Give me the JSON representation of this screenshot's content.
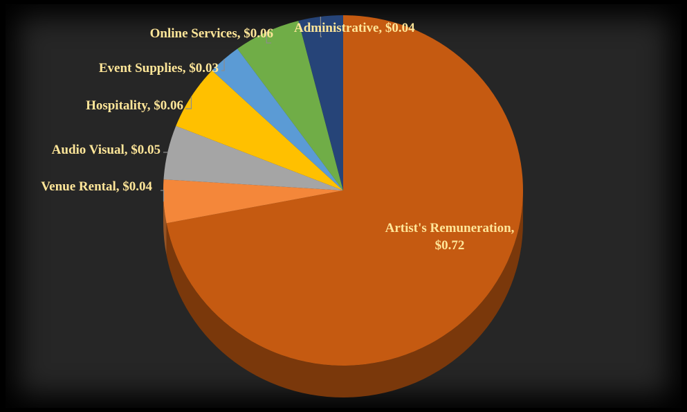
{
  "chart_data": {
    "type": "pie",
    "style": "3d",
    "currency": "$",
    "slices": [
      {
        "label": "Artist's Remuneration",
        "value": 0.72,
        "display": "$0.72",
        "color": "#c55a11"
      },
      {
        "label": "Venue Rental",
        "value": 0.04,
        "display": "$0.04",
        "color": "#f4873a"
      },
      {
        "label": "Audio Visual",
        "value": 0.05,
        "display": "$0.05",
        "color": "#a5a5a5"
      },
      {
        "label": "Hospitality",
        "value": 0.06,
        "display": "$0.06",
        "color": "#ffc000"
      },
      {
        "label": "Event Supplies",
        "value": 0.03,
        "display": "$0.03",
        "color": "#5b9bd5"
      },
      {
        "label": "Online Services",
        "value": 0.06,
        "display": "$0.06",
        "color": "#70ad47"
      },
      {
        "label": "Administrative",
        "value": 0.04,
        "display": "$0.04",
        "color": "#264478"
      }
    ],
    "label_color": "#ffe699",
    "background": "#262626"
  }
}
